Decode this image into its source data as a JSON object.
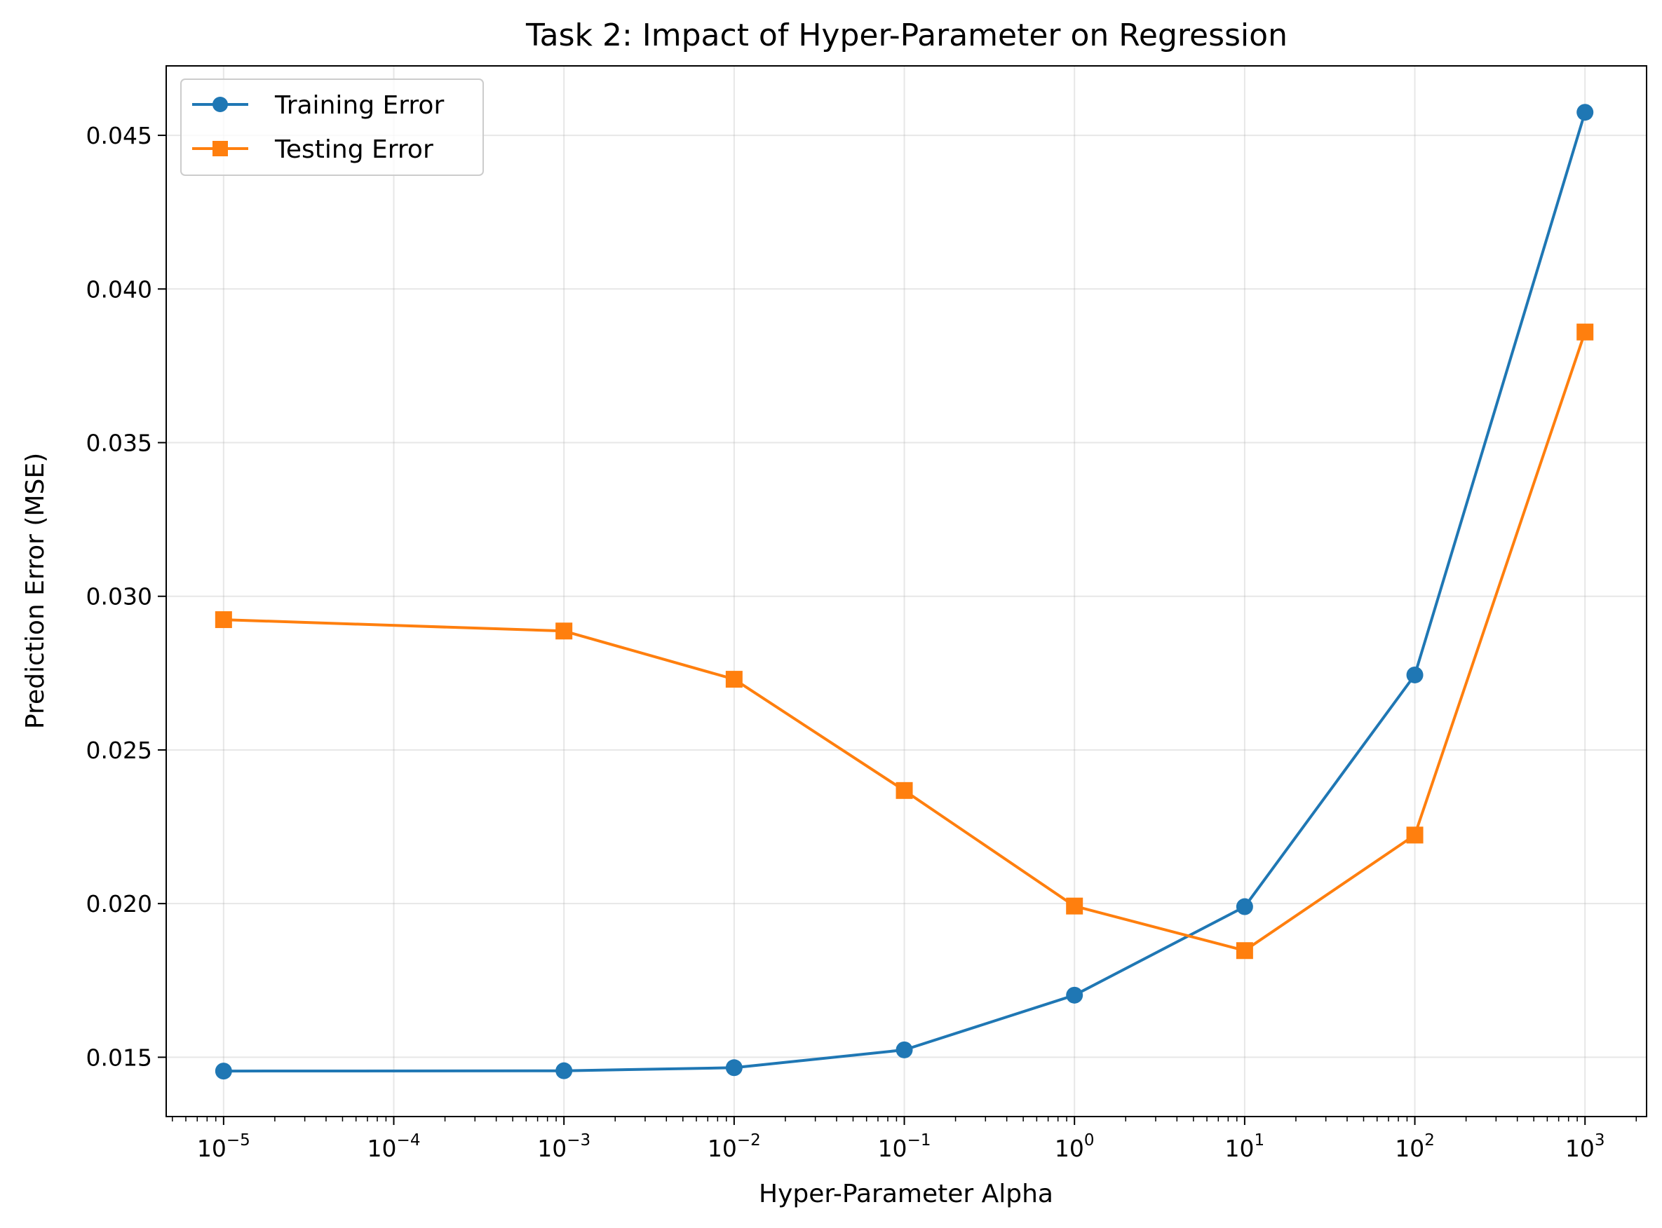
{
  "chart_data": {
    "type": "line",
    "title": "Task 2: Impact of Hyper-Parameter on Regression",
    "xlabel": "Hyper-Parameter Alpha",
    "ylabel": "Prediction Error (MSE)",
    "xscale": "log",
    "xlim": [
      4.6e-06,
      2300
    ],
    "ylim": [
      0.01307,
      0.04726
    ],
    "grid": true,
    "legend_position": "upper-left",
    "x": [
      1e-05,
      0.001,
      0.01,
      0.1,
      1,
      10,
      100,
      1000
    ],
    "xticks": [
      {
        "value": 1e-05,
        "base": "10",
        "exp": "−5"
      },
      {
        "value": 0.0001,
        "base": "10",
        "exp": "−4"
      },
      {
        "value": 0.001,
        "base": "10",
        "exp": "−3"
      },
      {
        "value": 0.01,
        "base": "10",
        "exp": "−2"
      },
      {
        "value": 0.1,
        "base": "10",
        "exp": "−1"
      },
      {
        "value": 1,
        "base": "10",
        "exp": "0"
      },
      {
        "value": 10,
        "base": "10",
        "exp": "1"
      },
      {
        "value": 100,
        "base": "10",
        "exp": "2"
      },
      {
        "value": 1000,
        "base": "10",
        "exp": "3"
      }
    ],
    "yticks": [
      {
        "value": 0.015,
        "label": "0.015"
      },
      {
        "value": 0.02,
        "label": "0.020"
      },
      {
        "value": 0.025,
        "label": "0.025"
      },
      {
        "value": 0.03,
        "label": "0.030"
      },
      {
        "value": 0.035,
        "label": "0.035"
      },
      {
        "value": 0.04,
        "label": "0.040"
      },
      {
        "value": 0.045,
        "label": "0.045"
      }
    ],
    "series": [
      {
        "name": "Training Error",
        "color": "#1f77b4",
        "marker": "circle",
        "values": [
          0.01455,
          0.01456,
          0.01466,
          0.01524,
          0.01702,
          0.0199,
          0.02744,
          0.04575
        ]
      },
      {
        "name": "Testing Error",
        "color": "#ff7f0e",
        "marker": "square",
        "values": [
          0.02924,
          0.02887,
          0.0273,
          0.02368,
          0.01992,
          0.01847,
          0.02223,
          0.0386
        ]
      }
    ]
  }
}
